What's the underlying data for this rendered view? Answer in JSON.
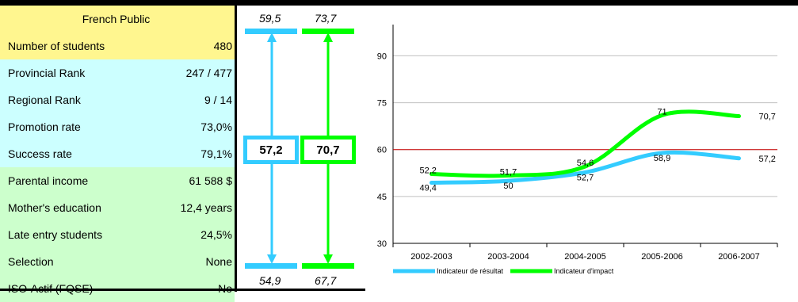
{
  "header": {
    "title": "French  Public"
  },
  "stats": [
    {
      "label": "Number of students",
      "value": "480",
      "bg": "#fff68f"
    },
    {
      "label": "Provincial Rank",
      "value": "247 / 477",
      "bg": "#ccffff"
    },
    {
      "label": "Regional Rank",
      "value": "9 / 14",
      "bg": "#ccffff"
    },
    {
      "label": "Promotion rate",
      "value": "73,0%",
      "bg": "#ccffff"
    },
    {
      "label": "Success rate",
      "value": "79,1%",
      "bg": "#ccffff"
    },
    {
      "label": "Parental income",
      "value": "61 588 $",
      "bg": "#ccffcc"
    },
    {
      "label": "Mother's education",
      "value": "12,4 years",
      "bg": "#ccffcc"
    },
    {
      "label": "Late entry students",
      "value": "24,5%",
      "bg": "#ccffcc"
    },
    {
      "label": "Selection",
      "value": "None",
      "bg": "#ccffcc"
    },
    {
      "label": "ISO-Actif (FQSE)",
      "value": "No",
      "bg": "#ccffcc"
    }
  ],
  "indicators": {
    "result": {
      "top": "59,5",
      "current": "57,2",
      "bottom": "54,9",
      "color": "#33ccff"
    },
    "impact": {
      "top": "73,7",
      "current": "70,7",
      "bottom": "67,7",
      "color": "#00ff00"
    }
  },
  "chart_data": {
    "type": "line",
    "categories": [
      "2002-2003",
      "2003-2004",
      "2004-2005",
      "2005-2006",
      "2006-2007"
    ],
    "series": [
      {
        "name": "Indicateur de résultat",
        "values": [
          49.4,
          50,
          52.7,
          58.9,
          57.2
        ],
        "labels": [
          "49,4",
          "50",
          "52,7",
          "58,9",
          "57,2"
        ],
        "color": "#33ccff"
      },
      {
        "name": "Indicateur d'impact",
        "values": [
          52.2,
          51.7,
          54.6,
          71,
          70.7
        ],
        "labels": [
          "52,2",
          "51,7",
          "54,6",
          "71",
          "70,7"
        ],
        "color": "#00ff00"
      }
    ],
    "ylim": [
      30,
      100
    ],
    "yticks": [
      "30",
      "45",
      "60",
      "75",
      "90"
    ],
    "reference_line": {
      "value": 60,
      "color": "#cc0000"
    },
    "grid": true,
    "legend": "bottom-left"
  }
}
